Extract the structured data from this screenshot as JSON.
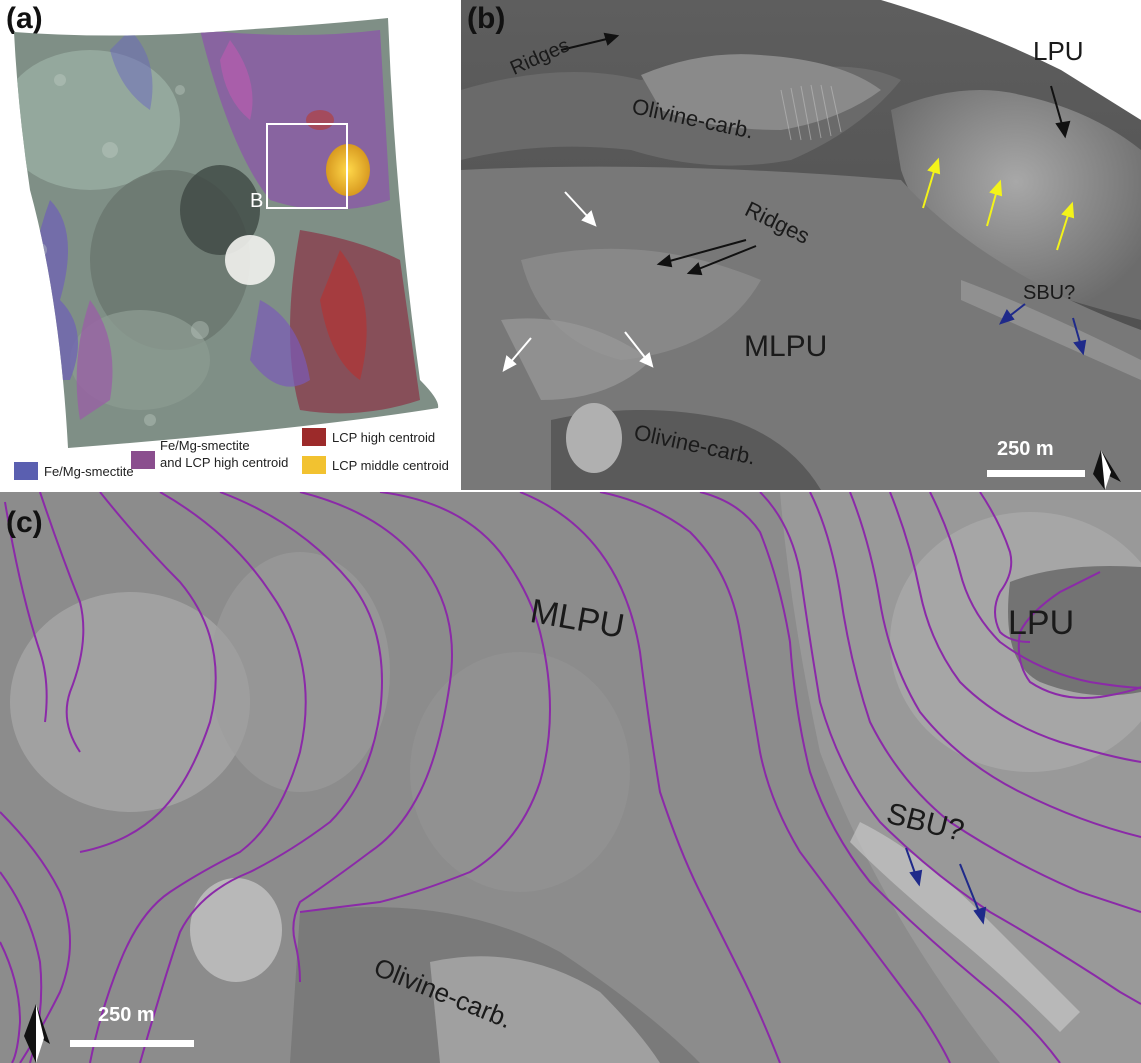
{
  "panel_a": {
    "label": "(a)",
    "box_label": "B",
    "legend": [
      {
        "label": "Fe/Mg-smectite",
        "color": "#5a5fb0"
      },
      {
        "label": "Fe/Mg-smectite",
        "label2": "and LCP high centroid",
        "color": "#8a4e8e"
      },
      {
        "label": "LCP high centroid",
        "color": "#9c2a2a"
      },
      {
        "label": "LCP middle centroid",
        "color": "#f2c230"
      }
    ]
  },
  "panel_b": {
    "label": "(b)",
    "annotations": {
      "ridges_top": "Ridges",
      "olivine_top": "Olivine-carb.",
      "lpu": "LPU",
      "ridges_mid": "Ridges",
      "sbu": "SBU?",
      "mlpu": "MLPU",
      "olivine_bottom": "Olivine-carb."
    },
    "scalebar": "250 m"
  },
  "panel_c": {
    "label": "(c)",
    "annotations": {
      "mlpu": "MLPU",
      "lpu": "LPU",
      "sbu": "SBU?",
      "olivine": "Olivine-carb."
    },
    "scalebar": "250 m"
  },
  "colors": {
    "contour": "#8b2aa8",
    "arrow_black": "#111111",
    "arrow_white": "#ffffff",
    "arrow_yellow": "#f3f31a",
    "arrow_blue": "#1f2a8a"
  }
}
